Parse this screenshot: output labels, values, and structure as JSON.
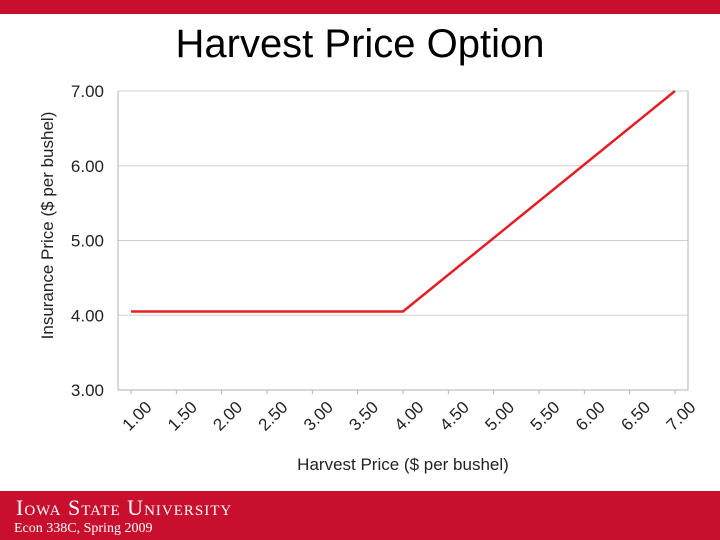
{
  "slide": {
    "title": "Harvest Price Option",
    "footer_org": "Iowa State University",
    "footer_course": "Econ 338C, Spring 2009"
  },
  "colors": {
    "accent": "#c8102e",
    "line": "#e31e24",
    "grid": "#d0d0d0"
  },
  "chart_data": {
    "type": "line",
    "title": "",
    "xlabel": "Harvest Price ($ per bushel)",
    "ylabel": "Insurance Price ($ per bushel)",
    "x_tick_labels": [
      "1.00",
      "1.50",
      "2.00",
      "2.50",
      "3.00",
      "3.50",
      "4.00",
      "4.50",
      "5.00",
      "5.50",
      "6.00",
      "6.50",
      "7.00"
    ],
    "y_tick_labels": [
      "3.00",
      "4.00",
      "5.00",
      "6.00",
      "7.00"
    ],
    "xlim": [
      1.0,
      7.0
    ],
    "ylim": [
      3.0,
      7.0
    ],
    "grid": true,
    "series": [
      {
        "x": [
          1.0,
          4.0,
          7.0
        ],
        "y": [
          4.05,
          4.05,
          7.0
        ]
      }
    ]
  }
}
